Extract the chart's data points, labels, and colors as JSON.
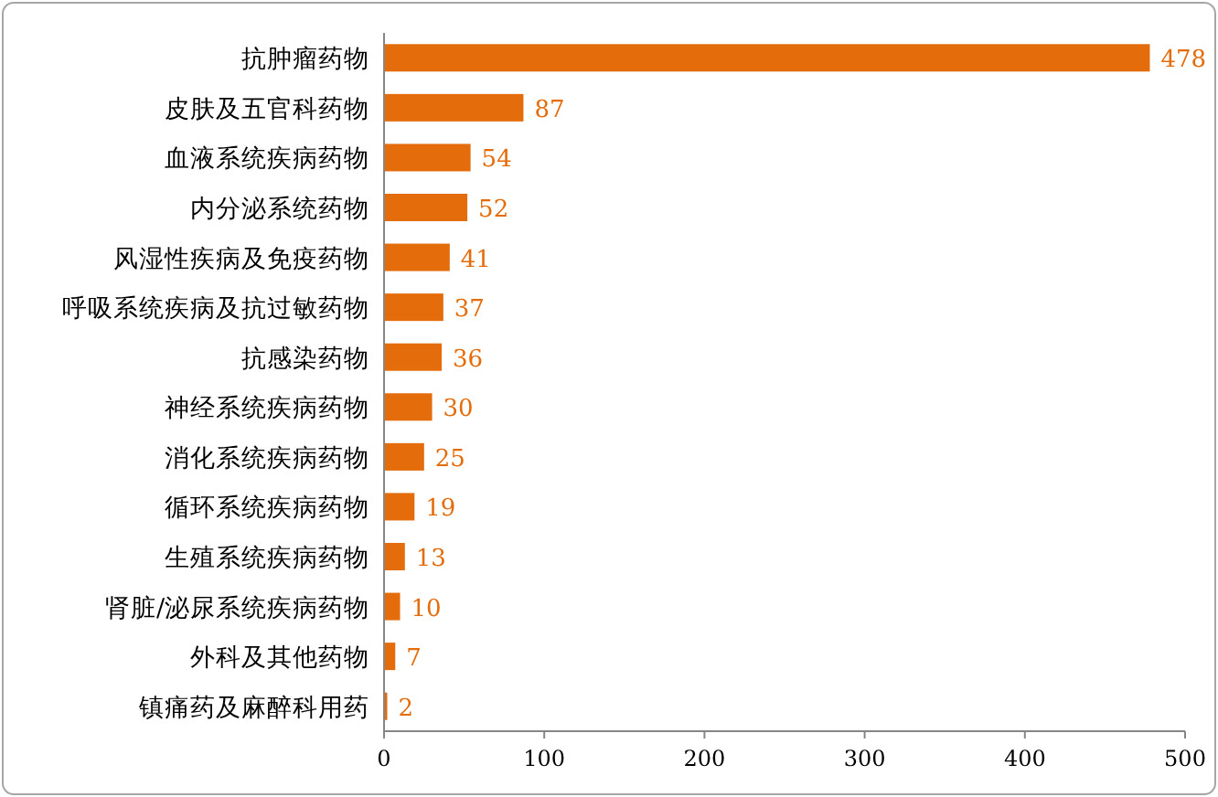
{
  "chart_data": {
    "type": "bar",
    "orientation": "horizontal",
    "categories": [
      "抗肿瘤药物",
      "皮肤及五官科药物",
      "血液系统疾病药物",
      "内分泌系统药物",
      "风湿性疾病及免疫药物",
      "呼吸系统疾病及抗过敏药物",
      "抗感染药物",
      "神经系统疾病药物",
      "消化系统疾病药物",
      "循环系统疾病药物",
      "生殖系统疾病药物",
      "肾脏/泌尿系统疾病药物",
      "外科及其他药物",
      "镇痛药及麻醉科用药"
    ],
    "values": [
      478,
      87,
      54,
      52,
      41,
      37,
      36,
      30,
      25,
      19,
      13,
      10,
      7,
      2
    ],
    "color": "#e46c0a",
    "xlim": [
      0,
      500
    ],
    "xticks": [
      0,
      100,
      200,
      300,
      400,
      500
    ],
    "data_labels": true,
    "grid": false
  }
}
